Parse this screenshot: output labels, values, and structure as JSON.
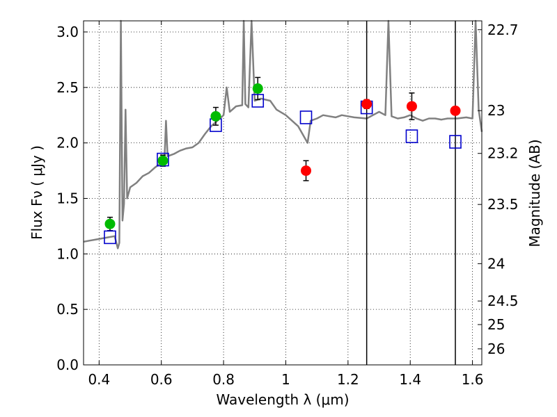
{
  "chart_data": {
    "type": "scatter",
    "title": "",
    "xlabel": "Wavelength  λ (μm)",
    "ylabel": "Flux  Fν  ( μJy )",
    "y2label": "Magnitude (AB)",
    "xlim": [
      0.35,
      1.63
    ],
    "ylim": [
      0.0,
      3.1
    ],
    "grid": true,
    "xticks": [
      {
        "value": 0.4,
        "label": "0.4"
      },
      {
        "value": 0.6,
        "label": "0.6"
      },
      {
        "value": 0.8,
        "label": "0.8"
      },
      {
        "value": 1.0,
        "label": "1"
      },
      {
        "value": 1.2,
        "label": "1.2"
      },
      {
        "value": 1.4,
        "label": "1.4"
      },
      {
        "value": 1.6,
        "label": "1.6"
      }
    ],
    "yticks": [
      {
        "value": 0.0,
        "label": "0.0"
      },
      {
        "value": 0.5,
        "label": "0.5"
      },
      {
        "value": 1.0,
        "label": "1.0"
      },
      {
        "value": 1.5,
        "label": "1.5"
      },
      {
        "value": 2.0,
        "label": "2.0"
      },
      {
        "value": 2.5,
        "label": "2.5"
      },
      {
        "value": 3.0,
        "label": "3.0"
      }
    ],
    "y2ticks": [
      {
        "mag": 22.7,
        "label": "22.7"
      },
      {
        "mag": 23.0,
        "label": "23"
      },
      {
        "mag": 23.2,
        "label": "23.2"
      },
      {
        "mag": 23.5,
        "label": "23.5"
      },
      {
        "mag": 24.0,
        "label": "24"
      },
      {
        "mag": 24.5,
        "label": "24.5"
      },
      {
        "mag": 25.0,
        "label": "25"
      },
      {
        "mag": 26.0,
        "label": "26"
      }
    ],
    "vlines": [
      1.26,
      1.545
    ],
    "colors": {
      "model_sed": "#808080",
      "model_photometry": "#0000cc",
      "optical_photometry": "#00bb00",
      "nir_photometry": "#ff0000",
      "errorbar": "#000000"
    },
    "series": [
      {
        "kind": "model_sed",
        "points": [
          [
            0.35,
            1.11
          ],
          [
            0.37,
            1.12
          ],
          [
            0.39,
            1.13
          ],
          [
            0.41,
            1.14
          ],
          [
            0.43,
            1.15
          ],
          [
            0.45,
            1.16
          ],
          [
            0.46,
            1.05
          ],
          [
            0.465,
            1.1
          ],
          [
            0.47,
            3.1
          ],
          [
            0.475,
            1.3
          ],
          [
            0.48,
            1.45
          ],
          [
            0.485,
            2.3
          ],
          [
            0.49,
            1.5
          ],
          [
            0.5,
            1.6
          ],
          [
            0.52,
            1.64
          ],
          [
            0.54,
            1.7
          ],
          [
            0.56,
            1.73
          ],
          [
            0.58,
            1.78
          ],
          [
            0.6,
            1.82
          ],
          [
            0.61,
            1.84
          ],
          [
            0.615,
            2.2
          ],
          [
            0.62,
            1.88
          ],
          [
            0.64,
            1.9
          ],
          [
            0.66,
            1.93
          ],
          [
            0.68,
            1.95
          ],
          [
            0.7,
            1.96
          ],
          [
            0.72,
            2.0
          ],
          [
            0.74,
            2.08
          ],
          [
            0.76,
            2.15
          ],
          [
            0.78,
            2.2
          ],
          [
            0.8,
            2.25
          ],
          [
            0.81,
            2.5
          ],
          [
            0.82,
            2.28
          ],
          [
            0.84,
            2.33
          ],
          [
            0.86,
            2.34
          ],
          [
            0.865,
            3.1
          ],
          [
            0.87,
            2.35
          ],
          [
            0.88,
            2.32
          ],
          [
            0.89,
            3.1
          ],
          [
            0.9,
            2.38
          ],
          [
            0.92,
            2.4
          ],
          [
            0.95,
            2.38
          ],
          [
            0.97,
            2.3
          ],
          [
            1.0,
            2.25
          ],
          [
            1.02,
            2.2
          ],
          [
            1.04,
            2.15
          ],
          [
            1.06,
            2.05
          ],
          [
            1.07,
            2.0
          ],
          [
            1.08,
            2.2
          ],
          [
            1.1,
            2.22
          ],
          [
            1.12,
            2.25
          ],
          [
            1.14,
            2.24
          ],
          [
            1.16,
            2.23
          ],
          [
            1.18,
            2.25
          ],
          [
            1.2,
            2.24
          ],
          [
            1.22,
            2.23
          ],
          [
            1.26,
            2.22
          ],
          [
            1.28,
            2.25
          ],
          [
            1.3,
            2.28
          ],
          [
            1.32,
            2.25
          ],
          [
            1.33,
            3.1
          ],
          [
            1.34,
            2.24
          ],
          [
            1.36,
            2.22
          ],
          [
            1.38,
            2.23
          ],
          [
            1.4,
            2.25
          ],
          [
            1.42,
            2.22
          ],
          [
            1.44,
            2.2
          ],
          [
            1.46,
            2.22
          ],
          [
            1.48,
            2.22
          ],
          [
            1.5,
            2.21
          ],
          [
            1.52,
            2.22
          ],
          [
            1.55,
            2.22
          ],
          [
            1.58,
            2.23
          ],
          [
            1.6,
            2.22
          ],
          [
            1.61,
            3.1
          ],
          [
            1.62,
            2.3
          ],
          [
            1.63,
            2.1
          ]
        ]
      },
      {
        "kind": "model_photometry",
        "points": [
          [
            0.435,
            1.15
          ],
          [
            0.605,
            1.85
          ],
          [
            0.775,
            2.16
          ],
          [
            0.91,
            2.38
          ],
          [
            1.065,
            2.23
          ],
          [
            1.26,
            2.32
          ],
          [
            1.405,
            2.06
          ],
          [
            1.545,
            2.01
          ]
        ]
      },
      {
        "kind": "optical_photometry",
        "points": [
          [
            0.435,
            1.27
          ],
          [
            0.605,
            1.84
          ],
          [
            0.775,
            2.24
          ],
          [
            0.91,
            2.49
          ]
        ],
        "errors": [
          0.06,
          0.05,
          0.08,
          0.1
        ]
      },
      {
        "kind": "nir_photometry",
        "points": [
          [
            1.065,
            1.75
          ],
          [
            1.26,
            2.35
          ],
          [
            1.405,
            2.33
          ],
          [
            1.545,
            2.29
          ]
        ],
        "errors": [
          0.09,
          0.04,
          0.12,
          0.03
        ]
      }
    ]
  }
}
